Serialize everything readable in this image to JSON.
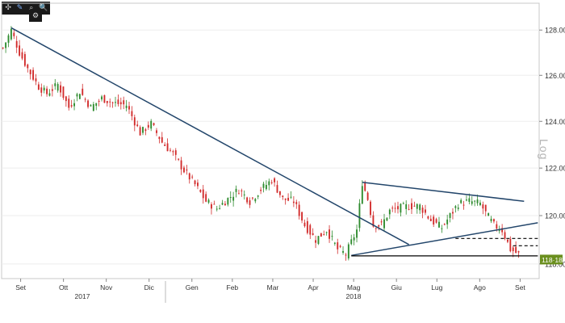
{
  "toolbar": {
    "tools": [
      {
        "name": "crosshair-icon",
        "glyph": "✣"
      },
      {
        "name": "pen-icon",
        "glyph": "✎"
      },
      {
        "name": "zoom-icon",
        "glyph": "⌕"
      },
      {
        "name": "search-icon",
        "glyph": "🔍"
      }
    ],
    "settings_glyph": "⚙"
  },
  "scale_label": "Log",
  "last_price_label": "118·18",
  "colors": {
    "up": "#2e8b2e",
    "down": "#d22b2b",
    "trendline": "#23466b",
    "level": "#000000",
    "price_tag": "#6a8f1e"
  },
  "chart_data": {
    "type": "candlestick",
    "y_scale": "log",
    "ylim": [
      117.4,
      129.2
    ],
    "y_ticks": [
      118.0,
      120.0,
      122.0,
      124.0,
      126.0,
      128.0
    ],
    "y_tick_labels": [
      "118.00",
      "120.00",
      "122.00",
      "124.00",
      "126.00",
      "128.00"
    ],
    "x_months": [
      "Set",
      "Ott",
      "Nov",
      "Dic",
      "Gen",
      "Feb",
      "Mar",
      "Apr",
      "Mag",
      "Giu",
      "Lug",
      "Ago",
      "Set"
    ],
    "x_years": [
      "2017",
      "2018"
    ],
    "last_price": 118.18,
    "anchors": [
      [
        0,
        127.2
      ],
      [
        3,
        128.0
      ],
      [
        6,
        127.0
      ],
      [
        9,
        126.3
      ],
      [
        13,
        125.5
      ],
      [
        16,
        125.2
      ],
      [
        20,
        125.6
      ],
      [
        24,
        124.6
      ],
      [
        28,
        125.3
      ],
      [
        32,
        124.6
      ],
      [
        36,
        125.0
      ],
      [
        40,
        124.8
      ],
      [
        45,
        124.7
      ],
      [
        50,
        123.5
      ],
      [
        54,
        123.9
      ],
      [
        58,
        123.1
      ],
      [
        62,
        122.6
      ],
      [
        66,
        121.9
      ],
      [
        70,
        121.3
      ],
      [
        74,
        120.6
      ],
      [
        78,
        120.3
      ],
      [
        82,
        120.7
      ],
      [
        86,
        121.1
      ],
      [
        90,
        120.6
      ],
      [
        94,
        121.1
      ],
      [
        98,
        121.5
      ],
      [
        102,
        120.7
      ],
      [
        106,
        120.6
      ],
      [
        110,
        119.6
      ],
      [
        114,
        119.0
      ],
      [
        118,
        119.4
      ],
      [
        122,
        118.6
      ],
      [
        125,
        118.4
      ],
      [
        127,
        118.9
      ],
      [
        129,
        119.4
      ],
      [
        131,
        121.4
      ],
      [
        133,
        120.7
      ],
      [
        135,
        119.6
      ],
      [
        138,
        119.6
      ],
      [
        141,
        120.2
      ],
      [
        144,
        120.3
      ],
      [
        148,
        120.4
      ],
      [
        152,
        120.4
      ],
      [
        156,
        119.8
      ],
      [
        160,
        119.5
      ],
      [
        163,
        120.0
      ],
      [
        166,
        120.5
      ],
      [
        170,
        120.6
      ],
      [
        174,
        120.5
      ],
      [
        176,
        120.1
      ],
      [
        179,
        119.6
      ],
      [
        182,
        119.4
      ],
      [
        185,
        118.6
      ],
      [
        188,
        118.4
      ]
    ],
    "trendlines": [
      {
        "from": [
          3,
          128.1
        ],
        "to": [
          148,
          118.8
        ]
      },
      {
        "from": [
          127,
          118.35
        ],
        "to": [
          195,
          119.7
        ]
      },
      {
        "from": [
          131,
          121.4
        ],
        "to": [
          190,
          120.6
        ]
      }
    ],
    "support_level": {
      "from": [
        127,
        118.33
      ],
      "to": [
        195,
        118.33
      ]
    },
    "dashed_levels": [
      {
        "from": [
          165,
          119.05
        ],
        "to": [
          195,
          119.05
        ]
      },
      {
        "from": [
          186,
          118.75
        ],
        "to": [
          195,
          118.75
        ]
      }
    ]
  }
}
